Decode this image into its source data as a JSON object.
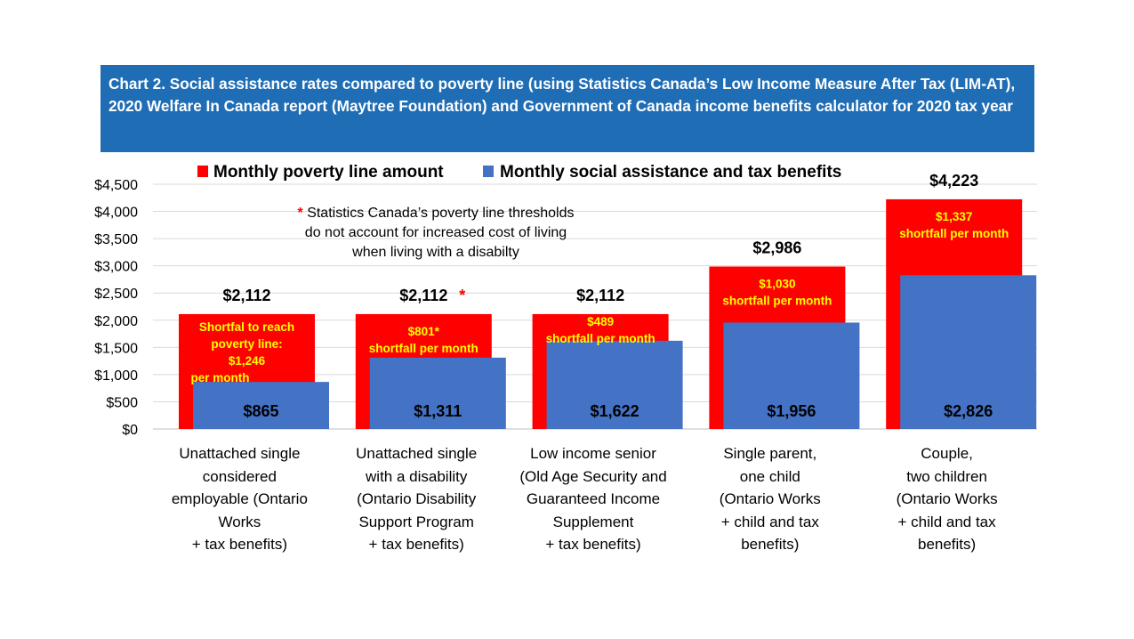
{
  "title": "Chart 2. Social assistance rates compared to poverty line (using Statistics Canada’s Low Income Measure After Tax (LIM-AT), 2020 Welfare In Canada report (Maytree Foundation) and Government of Canada income benefits calculator for 2020 tax year",
  "colors": {
    "title_bg": "#1f6db5",
    "poverty": "#ff0000",
    "assistance": "#4472c4",
    "shortfall_text": "#ffff00"
  },
  "note": {
    "star": "*",
    "text": "Statistics Canada’s poverty line thresholds do not account for increased cost of living when living with a disabilty"
  },
  "chart_data": {
    "type": "bar",
    "legend_placement": "top",
    "ylim": [
      0,
      4500
    ],
    "y_ticks": [
      "$0",
      "$500",
      "$1,000",
      "$1,500",
      "$2,000",
      "$2,500",
      "$3,000",
      "$3,500",
      "$4,000",
      "$4,500"
    ],
    "grid": true,
    "categories": [
      "Unattached single\nconsidered\nemployable (Ontario\nWorks\n+ tax benefits)",
      "Unattached single\nwith a disability\n(Ontario Disability\nSupport Program\n+ tax benefits)",
      "Low income senior\n(Old Age Security and\nGuaranteed Income\nSupplement\n+ tax benefits)",
      "Single parent,\none child\n(Ontario Works\n+ child and tax\nbenefits)",
      "Couple,\ntwo children\n(Ontario Works\n+ child and tax\nbenefits)"
    ],
    "series": [
      {
        "name": "Monthly poverty line amount",
        "values": [
          2112,
          2112,
          2112,
          2986,
          4223
        ],
        "labels": [
          "$2,112",
          "$2,112",
          "$2,112",
          "$2,986",
          "$4,223"
        ]
      },
      {
        "name": "Monthly social assistance and tax benefits",
        "values": [
          865,
          1311,
          1622,
          1956,
          2826
        ],
        "labels": [
          "$865",
          "$1,311",
          "$1,622",
          "$1,956",
          "$2,826"
        ]
      }
    ],
    "poverty_label_stars": [
      "",
      "*",
      "",
      "",
      ""
    ],
    "shortfall_labels": [
      [
        "Shortfal to  reach",
        "poverty line:",
        "$1,246",
        "per month"
      ],
      [
        "$801*",
        "shortfall per month"
      ],
      [
        "$489",
        "shortfall per month"
      ],
      [
        "$1,030",
        "shortfall per month"
      ],
      [
        "$1,337",
        "shortfall per month"
      ]
    ]
  }
}
